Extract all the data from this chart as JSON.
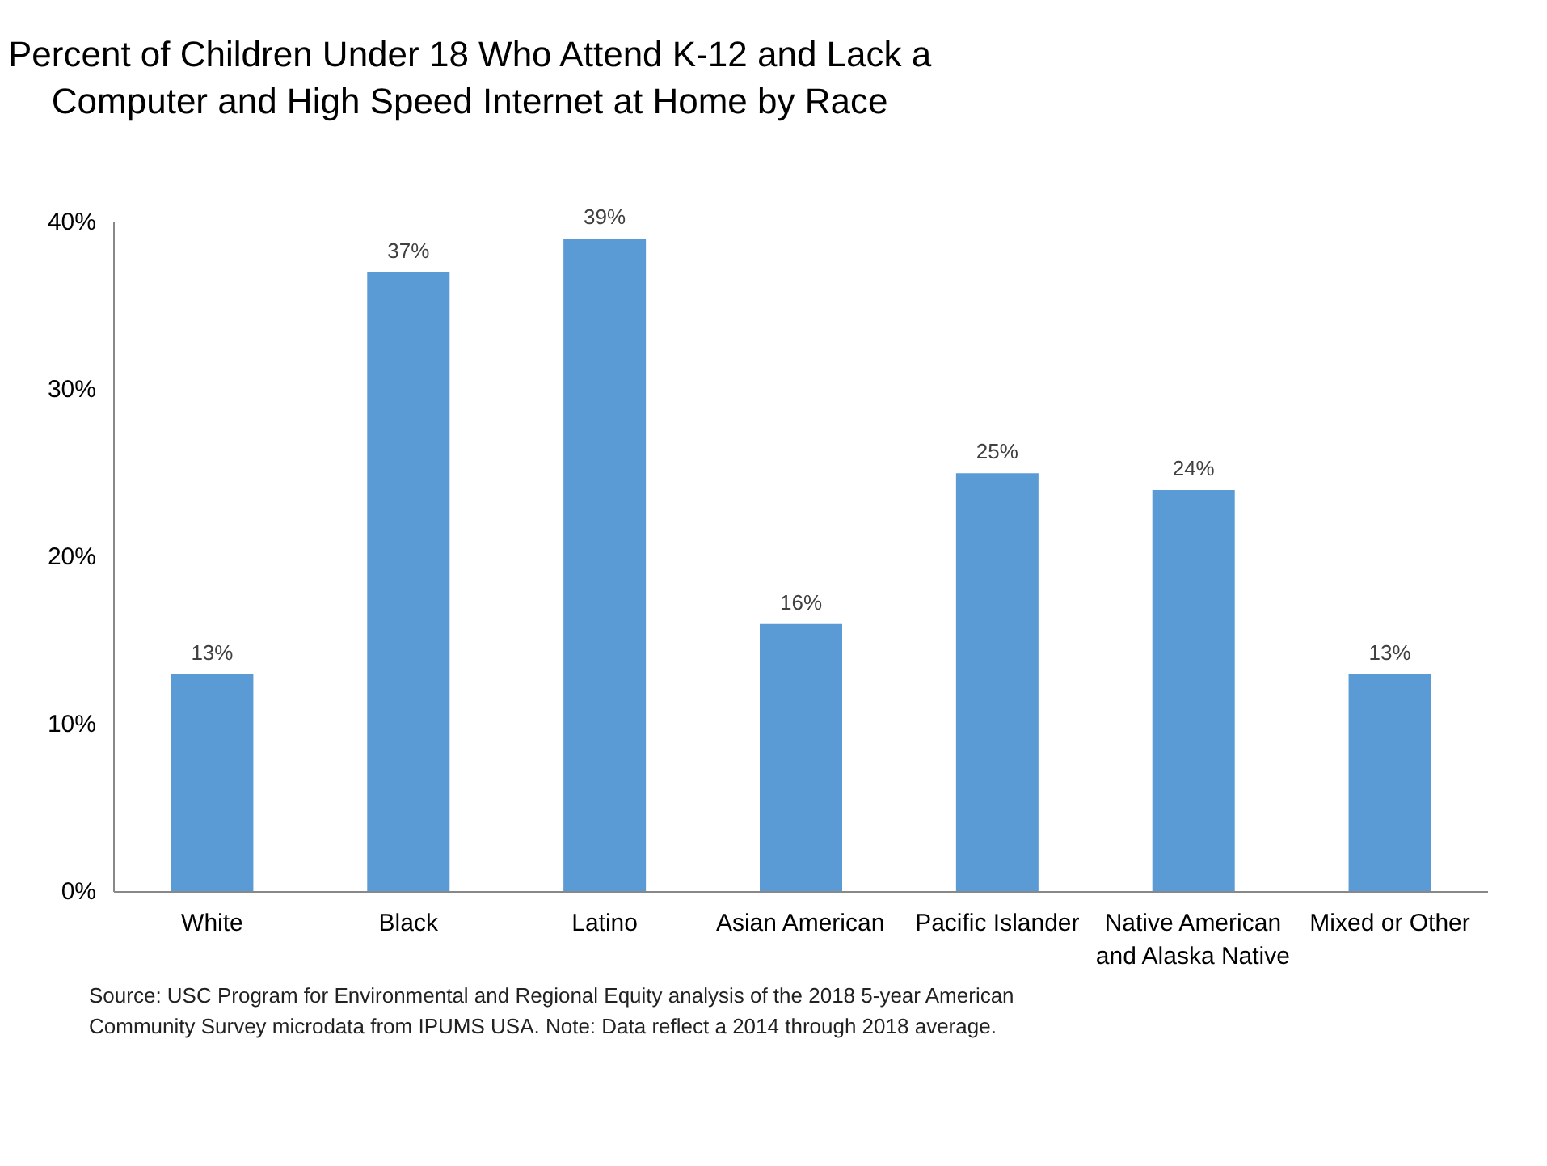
{
  "chart_data": {
    "type": "bar",
    "title": "Percent of Children Under 18 Who Attend K-12 and Lack a Computer and High Speed Internet at Home by Race",
    "categories": [
      "White",
      "Black",
      "Latino",
      "Asian American",
      "Pacific Islander",
      "Native American and Alaska Native",
      "Mixed or Other"
    ],
    "values": [
      13,
      37,
      39,
      16,
      25,
      24,
      13
    ],
    "value_labels": [
      "13%",
      "37%",
      "39%",
      "16%",
      "25%",
      "24%",
      "13%"
    ],
    "color": "#5b9bd5",
    "ylim": [
      0,
      40
    ],
    "yticks": [
      {
        "value": 0,
        "label": "0%"
      },
      {
        "value": 10,
        "label": "10%"
      },
      {
        "value": 20,
        "label": "20%"
      },
      {
        "value": 30,
        "label": "30%"
      },
      {
        "value": 40,
        "label": "40%"
      }
    ],
    "grid": false,
    "annotations": [
      "Source: USC Program for Environmental and Regional Equity analysis of the 2018 5-year American Community Survey microdata from IPUMS USA. Note: Data reflect a 2014 through 2018 average."
    ]
  }
}
